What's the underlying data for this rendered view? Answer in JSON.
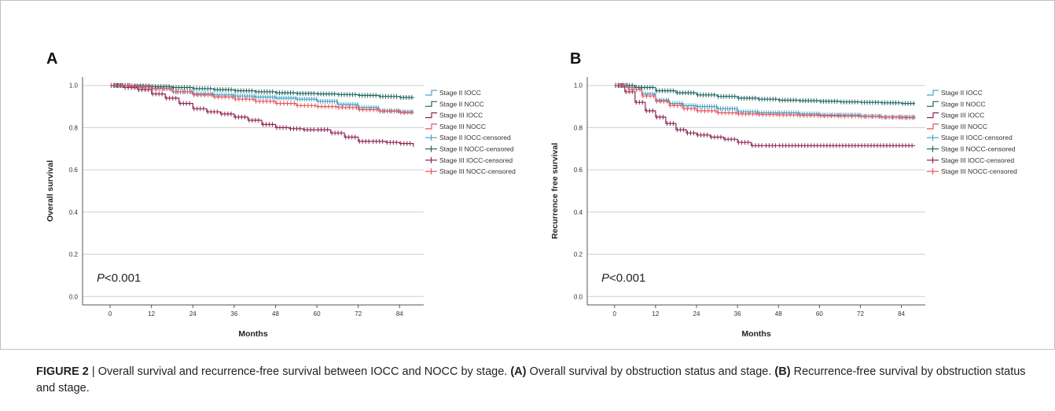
{
  "caption": {
    "figure_label": "FIGURE 2",
    "separator": " | ",
    "part1": "Overall survival and recurrence-free survival between IOCC and NOCC by stage. ",
    "labelA": "(A)",
    "part2": " Overall survival by obstruction status and stage. ",
    "labelB": "(B)",
    "part3": " Recurrence-free survival by obstruction status and stage."
  },
  "colors": {
    "stage2_iocc": "#4aa3c8",
    "stage2_nocc": "#1f6660",
    "stage3_iocc": "#8c2455",
    "stage3_nocc": "#e8555b",
    "grid": "#d0d0d0"
  },
  "chart_data": [
    {
      "panel": "A",
      "type": "line",
      "step": true,
      "xlabel": "Months",
      "ylabel": "Overall survival",
      "annotation": {
        "italic": "P",
        "rest": "<0.001"
      },
      "xlim": [
        -8,
        91
      ],
      "ylim": [
        -0.04,
        1.04
      ],
      "xticks": [
        0,
        12,
        24,
        36,
        48,
        60,
        72,
        84
      ],
      "yticks": [
        0.0,
        0.2,
        0.4,
        0.6,
        0.8,
        1.0
      ],
      "ytick_labels": [
        "0.0",
        "0.2",
        "0.4",
        "0.6",
        "0.8",
        "1.0"
      ],
      "grid": true,
      "legend_position": "right",
      "legend": [
        "Stage II IOCC",
        "Stage II NOCC",
        "Stage III IOCC",
        "Stage III NOCC",
        "Stage II IOCC-censored",
        "Stage II NOCC-censored",
        "Stage III IOCC-censored",
        "Stage III NOCC-censored"
      ],
      "series": [
        {
          "name": "Stage II IOCC",
          "color_key": "stage2_iocc",
          "x": [
            0,
            6,
            12,
            18,
            24,
            30,
            36,
            42,
            48,
            54,
            60,
            66,
            72,
            78,
            84,
            88
          ],
          "y": [
            1.0,
            0.995,
            0.985,
            0.97,
            0.96,
            0.955,
            0.95,
            0.945,
            0.94,
            0.935,
            0.925,
            0.91,
            0.895,
            0.88,
            0.875,
            0.875
          ]
        },
        {
          "name": "Stage II NOCC",
          "color_key": "stage2_nocc",
          "x": [
            0,
            6,
            12,
            18,
            24,
            30,
            36,
            42,
            48,
            54,
            60,
            66,
            72,
            78,
            84,
            88
          ],
          "y": [
            1.0,
            0.998,
            0.995,
            0.99,
            0.985,
            0.98,
            0.975,
            0.97,
            0.965,
            0.962,
            0.96,
            0.957,
            0.953,
            0.948,
            0.943,
            0.94
          ]
        },
        {
          "name": "Stage III IOCC",
          "color_key": "stage3_iocc",
          "x": [
            0,
            4,
            8,
            12,
            16,
            20,
            24,
            28,
            32,
            36,
            40,
            44,
            48,
            52,
            56,
            60,
            64,
            68,
            72,
            76,
            80,
            84,
            88
          ],
          "y": [
            1.0,
            0.99,
            0.98,
            0.96,
            0.94,
            0.915,
            0.89,
            0.875,
            0.865,
            0.85,
            0.835,
            0.815,
            0.8,
            0.795,
            0.79,
            0.79,
            0.775,
            0.755,
            0.735,
            0.735,
            0.73,
            0.725,
            0.71
          ]
        },
        {
          "name": "Stage III NOCC",
          "color_key": "stage3_nocc",
          "x": [
            0,
            6,
            12,
            18,
            24,
            30,
            36,
            42,
            48,
            54,
            60,
            66,
            72,
            78,
            84,
            88
          ],
          "y": [
            1.0,
            0.995,
            0.985,
            0.97,
            0.955,
            0.945,
            0.935,
            0.925,
            0.915,
            0.905,
            0.9,
            0.895,
            0.885,
            0.878,
            0.872,
            0.87
          ]
        }
      ]
    },
    {
      "panel": "B",
      "type": "line",
      "step": true,
      "xlabel": "Months",
      "ylabel": "Recurrence free survival",
      "annotation": {
        "italic": "P",
        "rest": "<0.001"
      },
      "xlim": [
        -8,
        91
      ],
      "ylim": [
        -0.04,
        1.04
      ],
      "xticks": [
        0,
        12,
        24,
        36,
        48,
        60,
        72,
        84
      ],
      "yticks": [
        0.0,
        0.2,
        0.4,
        0.6,
        0.8,
        1.0
      ],
      "ytick_labels": [
        "0.0",
        "0.2",
        "0.4",
        "0.6",
        "0.8",
        "1.0"
      ],
      "grid": true,
      "legend_position": "right",
      "legend": [
        "Stage II IOCC",
        "Stage II NOCC",
        "Stage III IOCC",
        "Stage III NOCC",
        "Stage II IOCC-censored",
        "Stage II NOCC-censored",
        "Stage III IOCC-censored",
        "Stage III NOCC-censored"
      ],
      "series": [
        {
          "name": "Stage II IOCC",
          "color_key": "stage2_iocc",
          "x": [
            0,
            4,
            8,
            12,
            16,
            20,
            24,
            30,
            36,
            42,
            48,
            54,
            60,
            66,
            72,
            78,
            84,
            88
          ],
          "y": [
            1.0,
            0.99,
            0.96,
            0.93,
            0.915,
            0.905,
            0.9,
            0.89,
            0.875,
            0.87,
            0.87,
            0.865,
            0.86,
            0.86,
            0.855,
            0.85,
            0.85,
            0.85
          ]
        },
        {
          "name": "Stage II NOCC",
          "color_key": "stage2_nocc",
          "x": [
            0,
            6,
            12,
            18,
            24,
            30,
            36,
            42,
            48,
            54,
            60,
            66,
            72,
            78,
            84,
            88
          ],
          "y": [
            1.0,
            0.99,
            0.975,
            0.965,
            0.955,
            0.948,
            0.94,
            0.935,
            0.93,
            0.928,
            0.925,
            0.922,
            0.92,
            0.918,
            0.915,
            0.915
          ]
        },
        {
          "name": "Stage III IOCC",
          "color_key": "stage3_iocc",
          "x": [
            0,
            3,
            6,
            9,
            12,
            15,
            18,
            21,
            24,
            28,
            32,
            36,
            40,
            44,
            48,
            60,
            72,
            84,
            88
          ],
          "y": [
            1.0,
            0.97,
            0.92,
            0.88,
            0.85,
            0.82,
            0.79,
            0.775,
            0.765,
            0.755,
            0.745,
            0.73,
            0.715,
            0.715,
            0.715,
            0.715,
            0.715,
            0.715,
            0.715
          ]
        },
        {
          "name": "Stage III NOCC",
          "color_key": "stage3_nocc",
          "x": [
            0,
            4,
            8,
            12,
            16,
            20,
            24,
            30,
            36,
            42,
            48,
            54,
            60,
            66,
            72,
            78,
            84,
            88
          ],
          "y": [
            1.0,
            0.98,
            0.95,
            0.925,
            0.905,
            0.89,
            0.88,
            0.87,
            0.865,
            0.862,
            0.86,
            0.858,
            0.856,
            0.855,
            0.853,
            0.85,
            0.848,
            0.845
          ]
        }
      ]
    }
  ]
}
